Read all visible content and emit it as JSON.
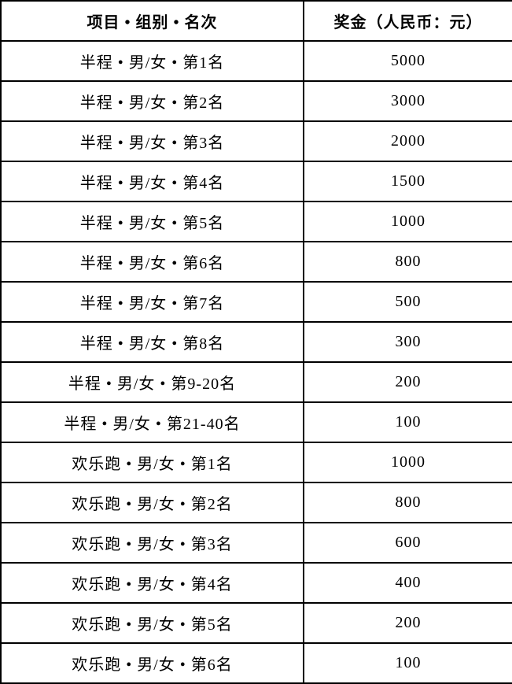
{
  "table": {
    "title_semantic": "prize-money-table",
    "columns": {
      "item": "项目 • 组别 • 名次",
      "prize": "奖金（人民币：元）"
    },
    "rows": [
      {
        "label": "半程 • 男/女 • 第1名",
        "prize": "5000"
      },
      {
        "label": "半程 • 男/女 • 第2名",
        "prize": "3000"
      },
      {
        "label": "半程 • 男/女 • 第3名",
        "prize": "2000"
      },
      {
        "label": "半程 • 男/女 • 第4名",
        "prize": "1500"
      },
      {
        "label": "半程 • 男/女 • 第5名",
        "prize": "1000"
      },
      {
        "label": "半程 • 男/女 • 第6名",
        "prize": "800"
      },
      {
        "label": "半程 • 男/女 • 第7名",
        "prize": "500"
      },
      {
        "label": "半程 • 男/女 • 第8名",
        "prize": "300"
      },
      {
        "label": "半程 • 男/女 • 第9-20名",
        "prize": "200"
      },
      {
        "label": "半程 • 男/女 • 第21-40名",
        "prize": "100"
      },
      {
        "label": "欢乐跑 • 男/女 • 第1名",
        "prize": "1000"
      },
      {
        "label": "欢乐跑 • 男/女 • 第2名",
        "prize": "800"
      },
      {
        "label": "欢乐跑 • 男/女 • 第3名",
        "prize": "600"
      },
      {
        "label": "欢乐跑 • 男/女 • 第4名",
        "prize": "400"
      },
      {
        "label": "欢乐跑 • 男/女 • 第5名",
        "prize": "200"
      },
      {
        "label": "欢乐跑 • 男/女 • 第6名",
        "prize": "100"
      }
    ],
    "colors": {
      "border": "#000000",
      "text": "#000000",
      "background": "#ffffff"
    }
  }
}
